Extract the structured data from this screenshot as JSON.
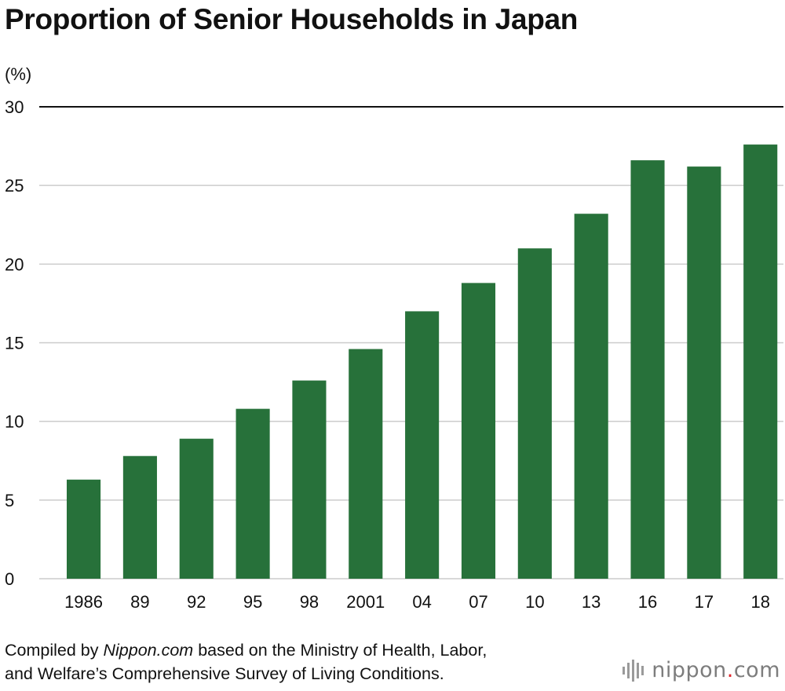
{
  "title": "Proportion of Senior Households in Japan",
  "source": {
    "prefix": "Compiled by ",
    "emphasis": "Nippon.com",
    "line1_rest": " based on the Ministry of Health, Labor,",
    "line2": "and Welfare’s Comprehensive Survey of Living Conditions."
  },
  "logo": {
    "before": "nippon",
    "dot": ".",
    "after": "com"
  },
  "colors": {
    "bar": "#27713a",
    "grid": "#cccccc",
    "top_line": "#111111",
    "text": "#111111"
  },
  "chart_data": {
    "type": "bar",
    "ylabel": "(%)",
    "categories": [
      "1986",
      "89",
      "92",
      "95",
      "98",
      "2001",
      "04",
      "07",
      "10",
      "13",
      "16",
      "17",
      "18"
    ],
    "values": [
      6.3,
      7.8,
      8.9,
      10.8,
      12.6,
      14.6,
      17.0,
      18.8,
      21.0,
      23.2,
      26.6,
      26.2,
      27.6
    ],
    "ylim": [
      0,
      30
    ],
    "yticks": [
      0,
      5,
      10,
      15,
      20,
      25,
      30
    ],
    "grid": true,
    "legend": "none"
  }
}
